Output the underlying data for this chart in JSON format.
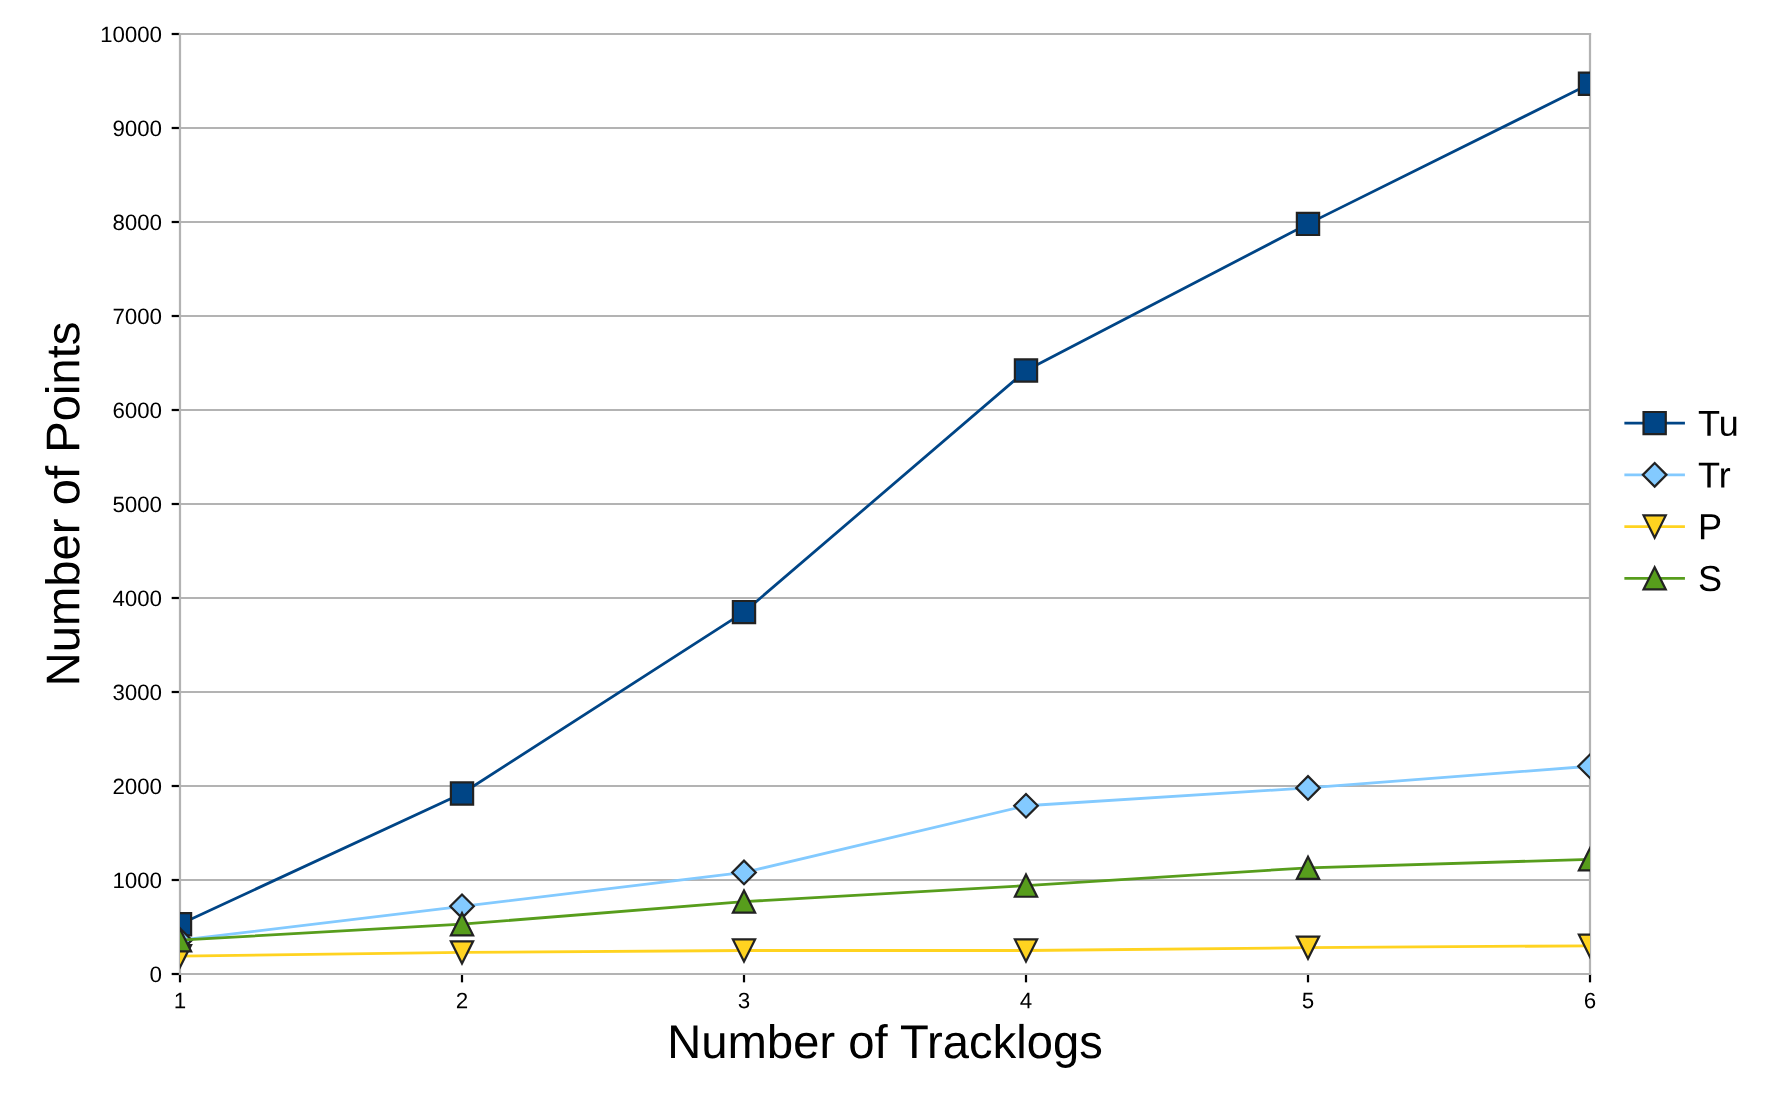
{
  "chart_data": {
    "type": "line",
    "xlabel": "Number of Tracklogs",
    "ylabel": "Number of Points",
    "x": [
      1,
      2,
      3,
      4,
      5,
      6
    ],
    "series": [
      {
        "name": "Tu",
        "color": "#004586",
        "marker": "square",
        "values": [
          530,
          1920,
          3850,
          6420,
          7980,
          9470
        ]
      },
      {
        "name": "Tr",
        "color": "#83caff",
        "marker": "diamond",
        "values": [
          360,
          720,
          1080,
          1790,
          1980,
          2210
        ]
      },
      {
        "name": "P",
        "color": "#ffd320",
        "marker": "triangle_down",
        "values": [
          190,
          230,
          250,
          250,
          280,
          300
        ]
      },
      {
        "name": "S",
        "color": "#579d1c",
        "marker": "triangle",
        "values": [
          360,
          530,
          770,
          940,
          1130,
          1220
        ]
      }
    ],
    "xlim": [
      1,
      6
    ],
    "xticks": [
      1,
      2,
      3,
      4,
      5,
      6
    ],
    "ylim": [
      0,
      10000
    ],
    "yticks": [
      0,
      1000,
      2000,
      3000,
      4000,
      5000,
      6000,
      7000,
      8000,
      9000,
      10000
    ],
    "grid": "y",
    "legend": "right",
    "line_style": "solid"
  }
}
